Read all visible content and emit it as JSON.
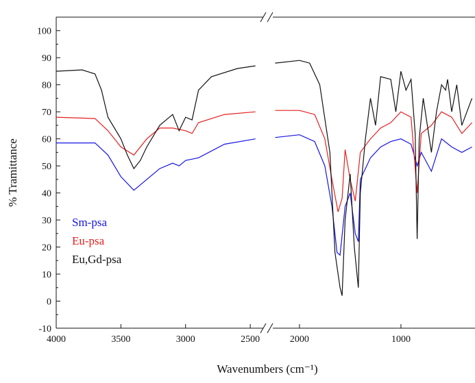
{
  "chart_data": {
    "type": "line",
    "x_label": "Wavenumbers (cm⁻¹)",
    "y_label": "% Tramittance",
    "segments": [
      {
        "xlim": [
          4000,
          2400
        ],
        "xticks": [
          4000,
          3500,
          3000,
          2500
        ]
      },
      {
        "xlim": [
          2263,
          270
        ],
        "xticks": [
          2000,
          1000
        ]
      }
    ],
    "ylim": [
      -10,
      105
    ],
    "yticks": [
      -10,
      0,
      10,
      20,
      30,
      40,
      50,
      60,
      70,
      80,
      90,
      100
    ],
    "legend": "lower-left",
    "series": [
      {
        "name": "Sm-psa",
        "color": "#1414e6",
        "x": [
          4000,
          3700,
          3600,
          3500,
          3400,
          3300,
          3200,
          3100,
          3050,
          3000,
          2900,
          2700,
          2460,
          2240,
          2000,
          1850,
          1750,
          1680,
          1630,
          1600,
          1550,
          1500,
          1450,
          1420,
          1400,
          1300,
          1200,
          1100,
          1000,
          900,
          840,
          800,
          700,
          600,
          500,
          400,
          300
        ],
        "values": [
          58.5,
          58.5,
          54,
          46,
          41,
          45,
          49,
          51,
          50,
          52,
          53,
          58,
          60,
          60.5,
          61.5,
          59,
          50,
          35,
          18,
          17,
          35,
          40,
          25,
          22,
          45,
          53,
          57,
          59,
          60,
          58,
          50,
          55,
          48,
          60,
          57,
          55,
          57
        ]
      },
      {
        "name": "Eu-psa",
        "color": "#e61e1e",
        "x": [
          4000,
          3700,
          3600,
          3500,
          3400,
          3300,
          3200,
          3100,
          3000,
          2950,
          2900,
          2700,
          2460,
          2240,
          2000,
          1850,
          1750,
          1680,
          1620,
          1580,
          1550,
          1500,
          1450,
          1400,
          1300,
          1200,
          1100,
          1000,
          900,
          840,
          800,
          700,
          600,
          500,
          400,
          300
        ],
        "values": [
          68,
          67.5,
          63,
          57,
          54,
          60,
          64,
          64,
          63,
          62,
          66,
          69,
          70,
          70.5,
          70.5,
          69,
          60,
          45,
          33,
          38,
          56,
          45,
          37,
          55,
          60,
          64,
          66,
          70,
          68,
          40,
          62,
          65,
          70,
          68,
          62,
          66
        ]
      },
      {
        "name": "Eu,Gd-psa",
        "color": "#111111",
        "x": [
          4000,
          3800,
          3700,
          3650,
          3600,
          3500,
          3450,
          3400,
          3350,
          3300,
          3200,
          3100,
          3050,
          3000,
          2950,
          2900,
          2800,
          2600,
          2460,
          2240,
          2000,
          1900,
          1800,
          1700,
          1650,
          1600,
          1580,
          1550,
          1500,
          1460,
          1420,
          1400,
          1350,
          1300,
          1250,
          1200,
          1100,
          1050,
          1000,
          950,
          900,
          860,
          840,
          820,
          780,
          700,
          650,
          600,
          560,
          540,
          500,
          450,
          400,
          300
        ],
        "values": [
          85,
          85.5,
          84,
          78,
          68,
          60,
          54,
          49,
          52,
          57,
          65,
          69,
          63,
          68,
          67,
          78,
          83,
          86,
          87,
          88,
          89,
          88,
          80,
          55,
          18,
          5,
          2,
          30,
          47,
          20,
          5,
          40,
          60,
          75,
          65,
          83,
          82,
          70,
          85,
          78,
          82,
          62,
          23,
          60,
          75,
          55,
          70,
          80,
          78,
          82,
          70,
          80,
          65,
          75
        ]
      }
    ]
  }
}
